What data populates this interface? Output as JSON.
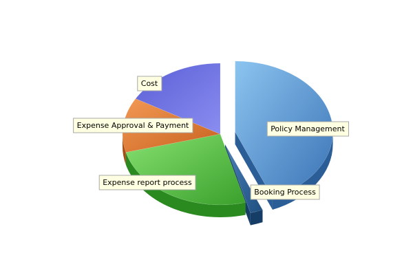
{
  "chart_data": {
    "type": "pie",
    "title": "",
    "slices": [
      {
        "label": "Policy Management",
        "value": 21,
        "color": "#5b9bd5",
        "exploded": true
      },
      {
        "label": "Booking Process",
        "value": 1,
        "color": "#2f5f8f",
        "exploded": true
      },
      {
        "label": "Expense report process",
        "value": 12,
        "color": "#4fbf40",
        "exploded": false
      },
      {
        "label": "Expense Approval & Payment",
        "value": 6,
        "color": "#e07a30",
        "exploded": false
      },
      {
        "label": "Cost",
        "value": 8,
        "color": "#6b6fe0",
        "exploded": false
      }
    ]
  }
}
